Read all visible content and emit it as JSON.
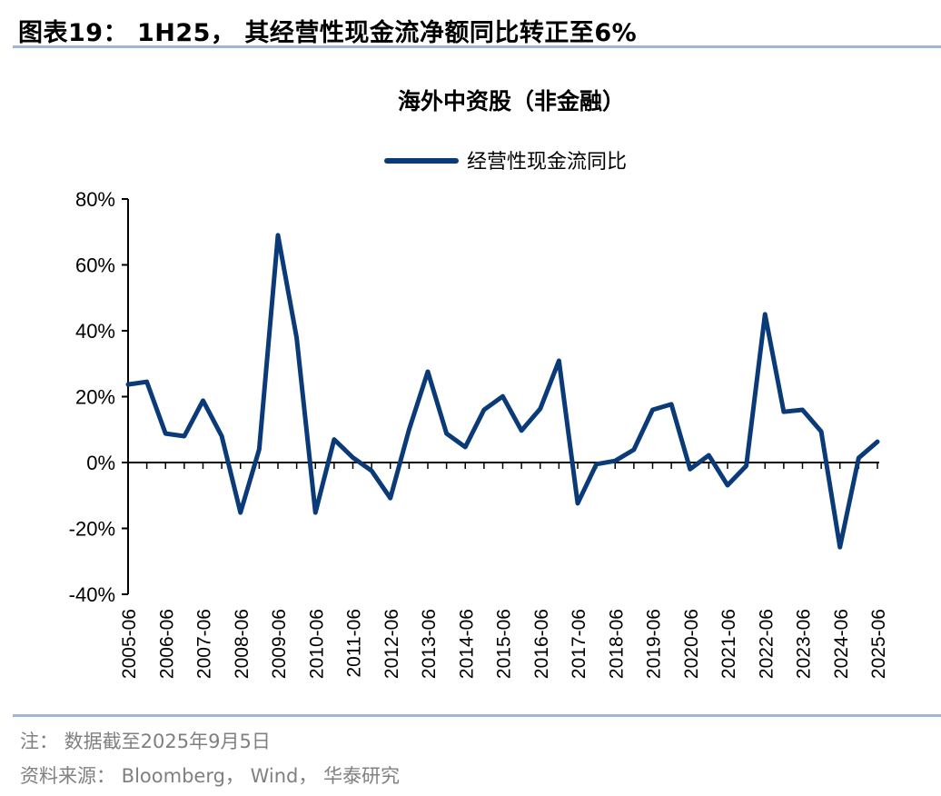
{
  "figure_title": "图表19： 1H25， 其经营性现金流净额同比转正至6%",
  "note": "注： 数据截至2025年9月5日",
  "source": "资料来源： Bloomberg， Wind， 华泰研究",
  "colors": {
    "line": "#0b3a78",
    "rule": "#9fb6cf",
    "axis": "#000000"
  },
  "chart_data": {
    "type": "line",
    "title": "海外中资股（非金融）",
    "legend": "top-center",
    "grid": false,
    "xlabel": "",
    "ylabel": "",
    "ylim": [
      -40,
      80
    ],
    "y_ticks": [
      "80%",
      "60%",
      "40%",
      "20%",
      "0%",
      "-20%",
      "-40%"
    ],
    "y_tick_values": [
      80,
      60,
      40,
      20,
      0,
      -20,
      -40
    ],
    "x_tick_labels": [
      "2005-06",
      "2006-06",
      "2007-06",
      "2008-06",
      "2009-06",
      "2010-06",
      "2011-06",
      "2012-06",
      "2013-06",
      "2014-06",
      "2015-06",
      "2016-06",
      "2017-06",
      "2018-06",
      "2019-06",
      "2020-06",
      "2021-06",
      "2022-06",
      "2023-06",
      "2024-06",
      "2025-06"
    ],
    "x": [
      "2005-06",
      "2005-12",
      "2006-06",
      "2006-12",
      "2007-06",
      "2007-12",
      "2008-06",
      "2008-12",
      "2009-06",
      "2009-12",
      "2010-06",
      "2010-12",
      "2011-06",
      "2011-12",
      "2012-06",
      "2012-12",
      "2013-06",
      "2013-12",
      "2014-06",
      "2014-12",
      "2015-06",
      "2015-12",
      "2016-06",
      "2016-12",
      "2017-06",
      "2017-12",
      "2018-06",
      "2018-12",
      "2019-06",
      "2019-12",
      "2020-06",
      "2020-12",
      "2021-06",
      "2021-12",
      "2022-06",
      "2022-12",
      "2023-06",
      "2023-12",
      "2024-06",
      "2024-12",
      "2025-06"
    ],
    "series": [
      {
        "name": "经营性现金流同比",
        "unit": "%",
        "values": [
          23.7,
          24.5,
          8.8,
          8.0,
          18.8,
          8.0,
          -15.2,
          4.0,
          69.0,
          37.8,
          -15.2,
          7.0,
          1.5,
          -2.5,
          -10.8,
          10.0,
          27.6,
          8.8,
          4.7,
          16.0,
          20.1,
          9.7,
          16.3,
          30.9,
          -12.4,
          -0.5,
          0.5,
          3.9,
          16.0,
          17.7,
          -2.0,
          2.2,
          -6.9,
          -1.0,
          45.0,
          15.4,
          16.0,
          9.4,
          -25.7,
          1.4,
          6.3
        ]
      }
    ]
  }
}
